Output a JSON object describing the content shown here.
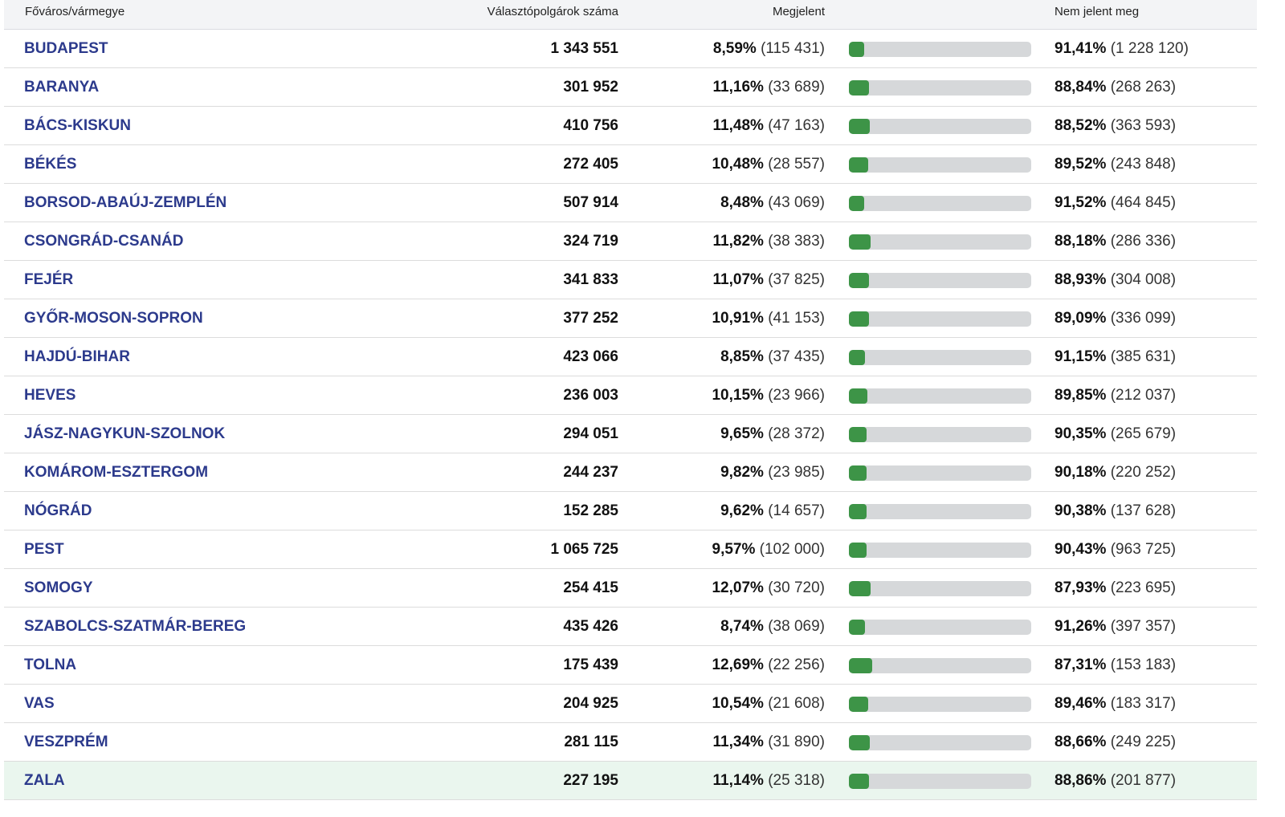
{
  "header": {
    "name": "Főváros/vármegye",
    "voters": "Választópolgárok száma",
    "present": "Megjelent",
    "absent": "Nem jelent meg"
  },
  "colors": {
    "bar_fill": "#3d9447",
    "bar_track": "#d6d8da",
    "name": "#2c3a8c",
    "highlight_row": "#eaf6ee"
  },
  "rows": [
    {
      "name": "BUDAPEST",
      "voters": "1 343 551",
      "present_pct": "8,59%",
      "present_cnt": "(115 431)",
      "absent_pct": "91,41%",
      "absent_cnt": "(1 228 120)",
      "turnout": 8.59
    },
    {
      "name": "BARANYA",
      "voters": "301 952",
      "present_pct": "11,16%",
      "present_cnt": "(33 689)",
      "absent_pct": "88,84%",
      "absent_cnt": "(268 263)",
      "turnout": 11.16
    },
    {
      "name": "BÁCS-KISKUN",
      "voters": "410 756",
      "present_pct": "11,48%",
      "present_cnt": "(47 163)",
      "absent_pct": "88,52%",
      "absent_cnt": "(363 593)",
      "turnout": 11.48
    },
    {
      "name": "BÉKÉS",
      "voters": "272 405",
      "present_pct": "10,48%",
      "present_cnt": "(28 557)",
      "absent_pct": "89,52%",
      "absent_cnt": "(243 848)",
      "turnout": 10.48
    },
    {
      "name": "BORSOD-ABAÚJ-ZEMPLÉN",
      "voters": "507 914",
      "present_pct": "8,48%",
      "present_cnt": "(43 069)",
      "absent_pct": "91,52%",
      "absent_cnt": "(464 845)",
      "turnout": 8.48
    },
    {
      "name": "CSONGRÁD-CSANÁD",
      "voters": "324 719",
      "present_pct": "11,82%",
      "present_cnt": "(38 383)",
      "absent_pct": "88,18%",
      "absent_cnt": "(286 336)",
      "turnout": 11.82
    },
    {
      "name": "FEJÉR",
      "voters": "341 833",
      "present_pct": "11,07%",
      "present_cnt": "(37 825)",
      "absent_pct": "88,93%",
      "absent_cnt": "(304 008)",
      "turnout": 11.07
    },
    {
      "name": "GYŐR-MOSON-SOPRON",
      "voters": "377 252",
      "present_pct": "10,91%",
      "present_cnt": "(41 153)",
      "absent_pct": "89,09%",
      "absent_cnt": "(336 099)",
      "turnout": 10.91
    },
    {
      "name": "HAJDÚ-BIHAR",
      "voters": "423 066",
      "present_pct": "8,85%",
      "present_cnt": "(37 435)",
      "absent_pct": "91,15%",
      "absent_cnt": "(385 631)",
      "turnout": 8.85
    },
    {
      "name": "HEVES",
      "voters": "236 003",
      "present_pct": "10,15%",
      "present_cnt": "(23 966)",
      "absent_pct": "89,85%",
      "absent_cnt": "(212 037)",
      "turnout": 10.15
    },
    {
      "name": "JÁSZ-NAGYKUN-SZOLNOK",
      "voters": "294 051",
      "present_pct": "9,65%",
      "present_cnt": "(28 372)",
      "absent_pct": "90,35%",
      "absent_cnt": "(265 679)",
      "turnout": 9.65
    },
    {
      "name": "KOMÁROM-ESZTERGOM",
      "voters": "244 237",
      "present_pct": "9,82%",
      "present_cnt": "(23 985)",
      "absent_pct": "90,18%",
      "absent_cnt": "(220 252)",
      "turnout": 9.82
    },
    {
      "name": "NÓGRÁD",
      "voters": "152 285",
      "present_pct": "9,62%",
      "present_cnt": "(14 657)",
      "absent_pct": "90,38%",
      "absent_cnt": "(137 628)",
      "turnout": 9.62
    },
    {
      "name": "PEST",
      "voters": "1 065 725",
      "present_pct": "9,57%",
      "present_cnt": "(102 000)",
      "absent_pct": "90,43%",
      "absent_cnt": "(963 725)",
      "turnout": 9.57
    },
    {
      "name": "SOMOGY",
      "voters": "254 415",
      "present_pct": "12,07%",
      "present_cnt": "(30 720)",
      "absent_pct": "87,93%",
      "absent_cnt": "(223 695)",
      "turnout": 12.07
    },
    {
      "name": "SZABOLCS-SZATMÁR-BEREG",
      "voters": "435 426",
      "present_pct": "8,74%",
      "present_cnt": "(38 069)",
      "absent_pct": "91,26%",
      "absent_cnt": "(397 357)",
      "turnout": 8.74
    },
    {
      "name": "TOLNA",
      "voters": "175 439",
      "present_pct": "12,69%",
      "present_cnt": "(22 256)",
      "absent_pct": "87,31%",
      "absent_cnt": "(153 183)",
      "turnout": 12.69
    },
    {
      "name": "VAS",
      "voters": "204 925",
      "present_pct": "10,54%",
      "present_cnt": "(21 608)",
      "absent_pct": "89,46%",
      "absent_cnt": "(183 317)",
      "turnout": 10.54
    },
    {
      "name": "VESZPRÉM",
      "voters": "281 115",
      "present_pct": "11,34%",
      "present_cnt": "(31 890)",
      "absent_pct": "88,66%",
      "absent_cnt": "(249 225)",
      "turnout": 11.34
    },
    {
      "name": "ZALA",
      "voters": "227 195",
      "present_pct": "11,14%",
      "present_cnt": "(25 318)",
      "absent_pct": "88,86%",
      "absent_cnt": "(201 877)",
      "turnout": 11.14,
      "highlighted": true
    }
  ]
}
